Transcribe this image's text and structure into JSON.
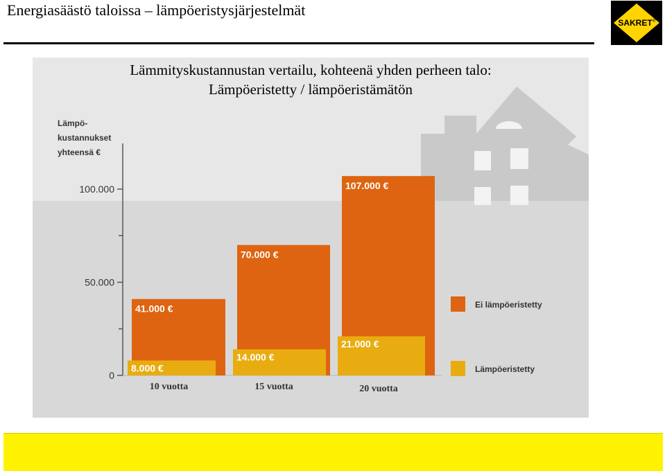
{
  "slide": {
    "title": "Energiasäästö taloissa – lämpöeristysjärjestelmät"
  },
  "logo": {
    "text": "SAKRET",
    "mark": "®",
    "colors": {
      "frame": "#000000",
      "diamond": "#ffd400",
      "text": "#000000"
    }
  },
  "chart_data": {
    "type": "bar",
    "title_line1": "Lämmityskustannustan vertailu, kohteenä yhden perheen talo:",
    "title_line2": "Lämpöeristetty / lämpöeristämätön",
    "ylabel_lines": [
      "Lämpö-",
      "kustannukset",
      "yhteensä €"
    ],
    "categories": [
      "10 vuotta",
      "15 vuotta",
      "20 vuotta"
    ],
    "ylim": [
      0,
      120000
    ],
    "yticks": [
      {
        "value": 0,
        "label": "0"
      },
      {
        "value": 50000,
        "label": "50.000"
      },
      {
        "value": 100000,
        "label": "100.000"
      }
    ],
    "minor_ticks": [
      25000,
      75000
    ],
    "series": [
      {
        "name": "Ei lämpöeristetty",
        "color": "#de6411",
        "values": [
          41000,
          70000,
          107000
        ],
        "labels": [
          "41.000 €",
          "70.000 €",
          "107.000 €"
        ]
      },
      {
        "name": "Lämpöeristetty",
        "color": "#e9ac10",
        "values": [
          8000,
          14000,
          21000
        ],
        "labels": [
          "8.000 €",
          "14.000 €",
          "21.000 €"
        ]
      }
    ],
    "legend_position": "right"
  }
}
